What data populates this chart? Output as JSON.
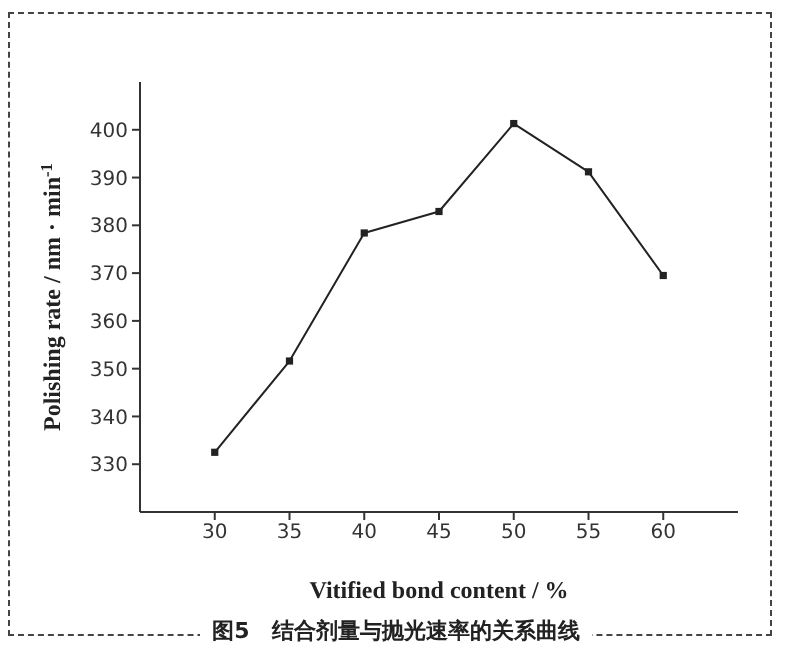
{
  "chart_data": {
    "type": "line",
    "title": "图5　结合剂量与抛光速率的关系曲线",
    "xlabel": "Vitified bond content / %",
    "ylabel": "Polishing rate / nm · min$^{-1}$",
    "x": [
      30,
      35,
      40,
      45,
      50,
      55,
      60
    ],
    "series": [
      {
        "color": "#222222",
        "values": [
          332.5,
          351.6,
          378.4,
          382.9,
          401.3,
          391.2,
          369.5
        ]
      }
    ],
    "xlim": [
      25,
      65
    ],
    "xticks": [
      30,
      35,
      40,
      45,
      50,
      55,
      60
    ],
    "ylim": [
      320,
      410
    ],
    "yticks": [
      330,
      340,
      350,
      360,
      370,
      380,
      390,
      400
    ],
    "marker": "square",
    "grid": false,
    "legend": false
  }
}
